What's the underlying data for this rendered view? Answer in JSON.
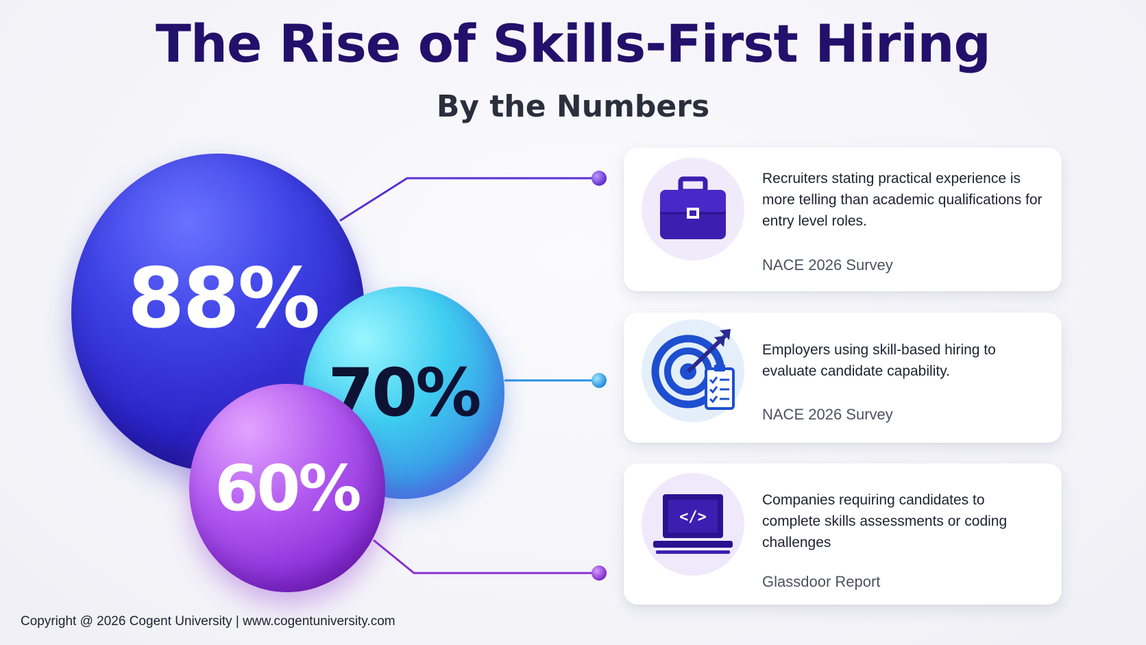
{
  "title": "The Rise of Skills-First Hiring",
  "subtitle": "By the Numbers",
  "stats": [
    {
      "value": "88%",
      "text": "Recruiters stating practical experience is more telling than academic qualifications for entry level roles.",
      "source": "NACE 2026 Survey",
      "icon": "briefcase-icon"
    },
    {
      "value": "70%",
      "text": "Employers using skill-based hiring to evaluate candidate capability.",
      "source": "NACE 2026 Survey",
      "icon": "target-checklist-icon"
    },
    {
      "value": "60%",
      "text": "Companies requiring candidates to complete skills assessments or coding challenges",
      "source": "Glassdoor Report",
      "icon": "laptop-code-icon"
    }
  ],
  "footer": "Copyright @ 2026 Cogent University | www.cogentuniversity.com",
  "colors": {
    "title": "#23106b",
    "bubble_88": "#3f43e6",
    "bubble_70": "#3ecdf0",
    "bubble_60": "#b25af0",
    "icon": "#3c1fb0"
  }
}
